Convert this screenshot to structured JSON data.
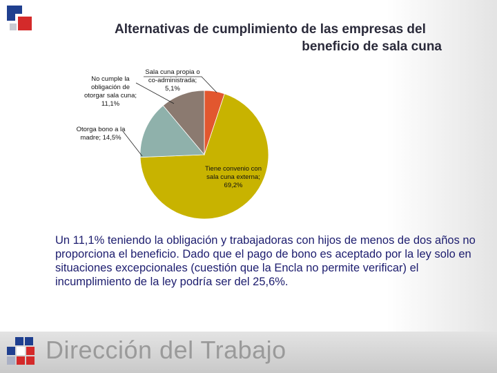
{
  "title": {
    "line1": "Alternativas de cumplimiento de las empresas del",
    "line2": "beneficio de sala cuna"
  },
  "chart_data": {
    "type": "pie",
    "slices": [
      {
        "label_lines": [
          "Sala cuna propia o",
          "co-administrada;",
          "5,1%"
        ],
        "value": 5.1,
        "color": "#e2572f"
      },
      {
        "label_lines": [
          "Tiene convenio con",
          "sala cuna externa;",
          "69,2%"
        ],
        "value": 69.2,
        "color": "#c8b300"
      },
      {
        "label_lines": [
          "Otorga bono a la",
          "madre; 14,5%"
        ],
        "value": 14.5,
        "color": "#8fb1ab"
      },
      {
        "label_lines": [
          "No cumple  la",
          "obligación de",
          "otorgar sala cuna;",
          "11,1%"
        ],
        "value": 11.1,
        "color": "#8b7a70"
      }
    ]
  },
  "body_text": "Un 11,1% teniendo la obligación y trabajadoras con hijos de menos de dos años no proporciona el beneficio. Dado que el pago de bono es aceptado por la ley solo en situaciones excepcionales (cuestión que la Encla no permite verificar) el incumplimiento de la ley podría ser del 25,6%.",
  "footer": {
    "brand": "Dirección del Trabajo"
  },
  "colors": {
    "title": "#2a2a3a",
    "body_text": "#1c1c6e",
    "brand_text": "#9a9a9a",
    "logo_blue": "#1f3f8f",
    "logo_red": "#d42a2a"
  }
}
